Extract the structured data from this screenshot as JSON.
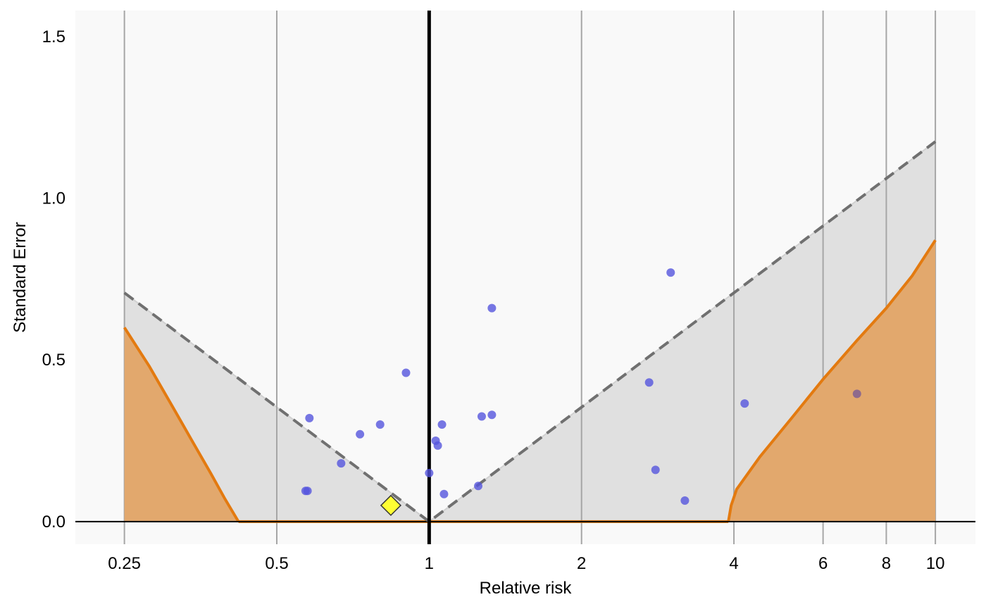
{
  "chart_data": {
    "type": "scatter",
    "title": "",
    "xlabel": "Relative risk",
    "ylabel": "Standard Error",
    "x_scale": "log",
    "xlim": [
      0.2,
      12
    ],
    "ylim": [
      -0.07,
      1.58
    ],
    "x_ticks": [
      {
        "value": 0.25,
        "label": "0.25"
      },
      {
        "value": 0.5,
        "label": "0.5"
      },
      {
        "value": 1,
        "label": "1"
      },
      {
        "value": 2,
        "label": "2"
      },
      {
        "value": 4,
        "label": "4"
      },
      {
        "value": 6,
        "label": "6"
      },
      {
        "value": 8,
        "label": "8"
      },
      {
        "value": 10,
        "label": "10"
      }
    ],
    "y_ticks": [
      {
        "value": 0.0,
        "label": "0.0"
      },
      {
        "value": 0.5,
        "label": "0.5"
      },
      {
        "value": 1.0,
        "label": "1.0"
      },
      {
        "value": 1.5,
        "label": "1.5"
      }
    ],
    "grid": "vertical",
    "reference_line_x": 1,
    "funnel": {
      "x_min": 0.25,
      "x_max": 10,
      "center": 1
    },
    "significance_region": {
      "left_curve": [
        [
          0.25,
          0.6
        ],
        [
          0.28,
          0.48
        ],
        [
          0.31,
          0.36
        ],
        [
          0.34,
          0.25
        ],
        [
          0.37,
          0.15
        ],
        [
          0.395,
          0.07
        ],
        [
          0.42,
          0.0
        ]
      ],
      "right_curve": [
        [
          3.9,
          0.0
        ],
        [
          3.95,
          0.05
        ],
        [
          4.05,
          0.1
        ],
        [
          4.5,
          0.2
        ],
        [
          5.2,
          0.32
        ],
        [
          6.0,
          0.44
        ],
        [
          7.0,
          0.56
        ],
        [
          8.0,
          0.66
        ],
        [
          9.0,
          0.76
        ],
        [
          10.0,
          0.87
        ]
      ]
    },
    "studies": [
      {
        "x": 0.57,
        "y": 0.095
      },
      {
        "x": 0.575,
        "y": 0.095
      },
      {
        "x": 0.58,
        "y": 0.32
      },
      {
        "x": 0.67,
        "y": 0.18
      },
      {
        "x": 0.73,
        "y": 0.27
      },
      {
        "x": 0.8,
        "y": 0.3
      },
      {
        "x": 0.9,
        "y": 0.46
      },
      {
        "x": 1.0,
        "y": 0.15
      },
      {
        "x": 1.03,
        "y": 0.25
      },
      {
        "x": 1.04,
        "y": 0.235
      },
      {
        "x": 1.06,
        "y": 0.3
      },
      {
        "x": 1.07,
        "y": 0.085
      },
      {
        "x": 1.25,
        "y": 0.11
      },
      {
        "x": 1.27,
        "y": 0.325
      },
      {
        "x": 1.33,
        "y": 0.33
      },
      {
        "x": 1.33,
        "y": 0.66
      },
      {
        "x": 2.72,
        "y": 0.43
      },
      {
        "x": 2.8,
        "y": 0.16
      },
      {
        "x": 3.0,
        "y": 0.77
      },
      {
        "x": 3.2,
        "y": 0.065
      },
      {
        "x": 4.2,
        "y": 0.365
      },
      {
        "x": 7.0,
        "y": 0.395
      }
    ],
    "pooled_estimate": {
      "x": 0.84,
      "y": 0.05
    },
    "colors": {
      "background": "#f9f9f9",
      "funnel_fill": "#e0e0e0",
      "significance_fill": "#e2a86d",
      "significance_line": "#e37a10",
      "point": "#5555dd",
      "point_significant": "#7b5a93",
      "pooled_fill": "#ffff33",
      "grid": "#a6a6a6",
      "dashed": "#707070",
      "reference": "#000000"
    }
  }
}
